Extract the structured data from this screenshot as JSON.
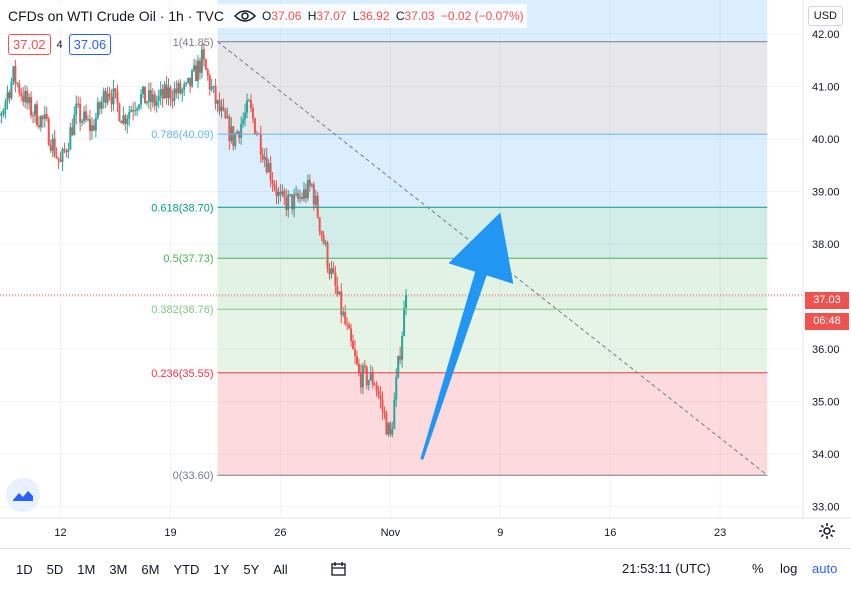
{
  "header": {
    "symbol_title": "CFDs on WTI Crude Oil · 1h · TVC",
    "ohlc": {
      "o_label": "O",
      "o": "37.06",
      "h_label": "H",
      "h": "37.07",
      "l_label": "L",
      "l": "36.92",
      "c_label": "C",
      "c": "37.03",
      "change": "−0.02 (−0.07%)"
    },
    "bid": "37.02",
    "spread": "4",
    "ask": "37.06"
  },
  "price_scale": {
    "currency": "USD",
    "last_price": "37.03",
    "countdown": "06:48",
    "ticks": [
      "42.00",
      "41.00",
      "40.00",
      "39.00",
      "38.00",
      "37.00",
      "36.00",
      "35.00",
      "34.00",
      "33.00"
    ]
  },
  "time_scale": {
    "ticks": [
      "12",
      "19",
      "26",
      "Nov",
      "9",
      "16",
      "23"
    ]
  },
  "fib_levels": [
    {
      "label": "1(41.85)",
      "price": 41.85,
      "color": "#787b86"
    },
    {
      "label": "0.786(40.09)",
      "price": 40.09,
      "color": "#64b5f6"
    },
    {
      "label": "0.618(38.70)",
      "price": 38.7,
      "color": "#089981"
    },
    {
      "label": "0.5(37.73)",
      "price": 37.73,
      "color": "#4caf50"
    },
    {
      "label": "0.382(36.76)",
      "price": 36.76,
      "color": "#81c784"
    },
    {
      "label": "0.236(35.55)",
      "price": 35.55,
      "color": "#f23645"
    },
    {
      "label": "0(33.60)",
      "price": 33.6,
      "color": "#787b86"
    }
  ],
  "bottom_bar": {
    "ranges": [
      "1D",
      "5D",
      "1M",
      "3M",
      "6M",
      "YTD",
      "1Y",
      "5Y",
      "All"
    ],
    "clock": "21:53:11 (UTC)",
    "percent": "%",
    "log": "log",
    "auto": "auto"
  },
  "colors": {
    "up": "#26a69a",
    "down": "#ef5350",
    "arrow": "#2196f3",
    "last_price_badge": "#ef5350"
  },
  "chart_data": {
    "type": "candlestick",
    "timeframe": "1h",
    "y_range": [
      32.9,
      42.55
    ],
    "x_range": [
      "Oct 7",
      "Nov 27"
    ],
    "x_tick_dates": [
      "Oct 12",
      "Oct 19",
      "Oct 26",
      "Nov 2",
      "Nov 9",
      "Nov 16",
      "Nov 23"
    ],
    "close_path": [
      {
        "x": "Oct 7",
        "y": 40.0
      },
      {
        "x": "Oct 8",
        "y": 40.3
      },
      {
        "x": "Oct 9",
        "y": 41.2
      },
      {
        "x": "Oct 10",
        "y": 40.6
      },
      {
        "x": "Oct 11",
        "y": 40.3
      },
      {
        "x": "Oct 12",
        "y": 39.5
      },
      {
        "x": "Oct 13",
        "y": 40.5
      },
      {
        "x": "Oct 14",
        "y": 40.2
      },
      {
        "x": "Oct 15",
        "y": 41.0
      },
      {
        "x": "Oct 16",
        "y": 40.4
      },
      {
        "x": "Oct 17",
        "y": 40.8
      },
      {
        "x": "Oct 18",
        "y": 40.7
      },
      {
        "x": "Oct 19",
        "y": 40.9
      },
      {
        "x": "Oct 20",
        "y": 40.9
      },
      {
        "x": "Oct 21",
        "y": 41.5
      },
      {
        "x": "Oct 22",
        "y": 40.6
      },
      {
        "x": "Oct 23",
        "y": 40.0
      },
      {
        "x": "Oct 24",
        "y": 40.6
      },
      {
        "x": "Oct 25",
        "y": 39.7
      },
      {
        "x": "Oct 26",
        "y": 38.8
      },
      {
        "x": "Oct 27",
        "y": 38.8
      },
      {
        "x": "Oct 28",
        "y": 39.1
      },
      {
        "x": "Oct 29",
        "y": 37.7
      },
      {
        "x": "Oct 30",
        "y": 36.6
      },
      {
        "x": "Oct 31",
        "y": 35.5
      },
      {
        "x": "Nov 1",
        "y": 35.4
      },
      {
        "x": "Nov 2",
        "y": 34.3
      },
      {
        "x": "Nov 3",
        "y": 37.03
      }
    ],
    "annotations": [
      {
        "type": "fib_retracement",
        "from": {
          "x": "Oct 22",
          "y": 41.85
        },
        "to": {
          "x": "Nov 26",
          "y": 33.6
        }
      },
      {
        "type": "arrow",
        "from": {
          "x": "Nov 4",
          "y": 33.9
        },
        "to": {
          "x": "Nov 9",
          "y": 38.6
        }
      }
    ]
  }
}
